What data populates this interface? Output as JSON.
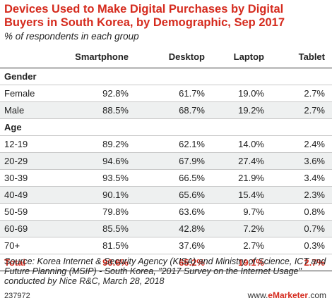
{
  "chart_data": {
    "type": "table",
    "title": "Devices Used to Make Digital Purchases by Digital Buyers in South Korea, by Demographic, Sep 2017",
    "subtitle": "% of respondents in each group",
    "columns": [
      "",
      "Smartphone",
      "Desktop",
      "Laptop",
      "Tablet"
    ],
    "groups": [
      {
        "label": "Gender",
        "rows": [
          {
            "label": "Female",
            "values": [
              "92.8%",
              "61.7%",
              "19.0%",
              "2.7%"
            ]
          },
          {
            "label": "Male",
            "values": [
              "88.5%",
              "68.7%",
              "19.2%",
              "2.7%"
            ]
          }
        ]
      },
      {
        "label": "Age",
        "rows": [
          {
            "label": "12-19",
            "values": [
              "89.2%",
              "62.1%",
              "14.0%",
              "2.4%"
            ]
          },
          {
            "label": "20-29",
            "values": [
              "94.6%",
              "67.9%",
              "27.4%",
              "3.6%"
            ]
          },
          {
            "label": "30-39",
            "values": [
              "93.5%",
              "66.5%",
              "21.9%",
              "3.4%"
            ]
          },
          {
            "label": "40-49",
            "values": [
              "90.1%",
              "65.6%",
              "15.4%",
              "2.3%"
            ]
          },
          {
            "label": "50-59",
            "values": [
              "79.8%",
              "63.6%",
              "9.7%",
              "0.8%"
            ]
          },
          {
            "label": "60-69",
            "values": [
              "85.5%",
              "42.8%",
              "7.2%",
              "0.7%"
            ]
          },
          {
            "label": "70+",
            "values": [
              "81.5%",
              "37.6%",
              "2.7%",
              "0.3%"
            ]
          }
        ]
      }
    ],
    "total": {
      "label": "Total",
      "values": [
        "90.6%",
        "65.2%",
        "19.1%",
        "2.7%"
      ]
    }
  },
  "source": "Source: Korea Internet & Security Agency (KISA) and Ministry of Science, ICT and Future Planning (MSIP) - South Korea, \"2017 Survey on the Internet Usage\" conducted by Nice R&C, March 28, 2018",
  "footer": {
    "chart_id": "237972",
    "brand_prefix": "www.",
    "brand_name": "eMarketer",
    "brand_suffix": ".com"
  },
  "colors": {
    "accent": "#d52b1e",
    "row_shade": "#eef0f0",
    "text": "#222222"
  }
}
